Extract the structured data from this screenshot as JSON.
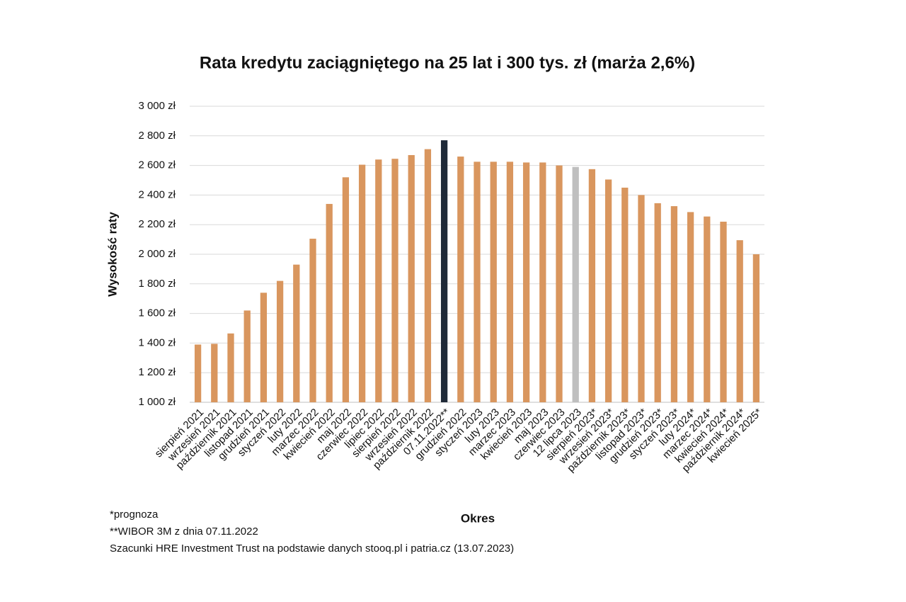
{
  "chart_data": {
    "type": "bar",
    "title": "Rata kredytu zaciągniętego na 25 lat i 300 tys. zł (marża 2,6%)",
    "y_label": "Wysokość raty",
    "x_label": "Okres",
    "notes": [
      "*prognoza",
      "**WIBOR 3M z dnia 07.11.2022",
      "Szacunki HRE Investment Trust na podstawie danych stooq.pl i patria.cz (13.07.2023)"
    ],
    "categories": [
      "sierpień 2021",
      "wrzesień 2021",
      "październik 2021",
      "listopad 2021",
      "grudzień 2021",
      "styczeń 2022",
      "luty 2022",
      "marzec 2022",
      "kwiecień 2022",
      "maj 2022",
      "czerwiec 2022",
      "lipiec 2022",
      "sierpień 2022",
      "wrzesień 2022",
      "październik 2022",
      "07.11.2022**",
      "grudzień 2022",
      "styczeń 2023",
      "luty 2023",
      "marzec 2023",
      "kwiecień 2023",
      "maj 2023",
      "czerwiec 2023",
      "12 lipca 2023",
      "sierpień 2023*",
      "wrzesień 2023*",
      "październik 2023*",
      "listopad 2023*",
      "grudzień 2023*",
      "styczeń 2023*",
      "luty 2024*",
      "marzec 2024*",
      "kwiecień 2024*",
      "październik 2024*",
      "kwiecień 2025*"
    ],
    "values": [
      1390,
      1395,
      1465,
      1620,
      1740,
      1820,
      1930,
      2105,
      2340,
      2520,
      2605,
      2640,
      2645,
      2670,
      2710,
      2770,
      2660,
      2625,
      2625,
      2625,
      2620,
      2620,
      2600,
      2590,
      2575,
      2505,
      2450,
      2400,
      2345,
      2325,
      2285,
      2255,
      2220,
      2095,
      2000
    ],
    "colors": [
      "#d9965e",
      "#d9965e",
      "#d9965e",
      "#d9965e",
      "#d9965e",
      "#d9965e",
      "#d9965e",
      "#d9965e",
      "#d9965e",
      "#d9965e",
      "#d9965e",
      "#d9965e",
      "#d9965e",
      "#d9965e",
      "#d9965e",
      "#1f2a38",
      "#d9965e",
      "#d9965e",
      "#d9965e",
      "#d9965e",
      "#d9965e",
      "#d9965e",
      "#d9965e",
      "#bfbfbf",
      "#d9965e",
      "#d9965e",
      "#d9965e",
      "#d9965e",
      "#d9965e",
      "#d9965e",
      "#d9965e",
      "#d9965e",
      "#d9965e",
      "#d9965e",
      "#d9965e"
    ],
    "ylim": [
      1000,
      3000
    ],
    "yticks": [
      {
        "value": 1000,
        "label": "1 000 zł"
      },
      {
        "value": 1200,
        "label": "1 200 zł"
      },
      {
        "value": 1400,
        "label": "1 400 zł"
      },
      {
        "value": 1600,
        "label": "1 600 zł"
      },
      {
        "value": 1800,
        "label": "1 800 zł"
      },
      {
        "value": 2000,
        "label": "2 000 zł"
      },
      {
        "value": 2200,
        "label": "2 200 zł"
      },
      {
        "value": 2400,
        "label": "2 400 zł"
      },
      {
        "value": 2600,
        "label": "2 600 zł"
      },
      {
        "value": 2800,
        "label": "2 800 zł"
      },
      {
        "value": 3000,
        "label": "3 000 zł"
      }
    ],
    "grid": true
  }
}
